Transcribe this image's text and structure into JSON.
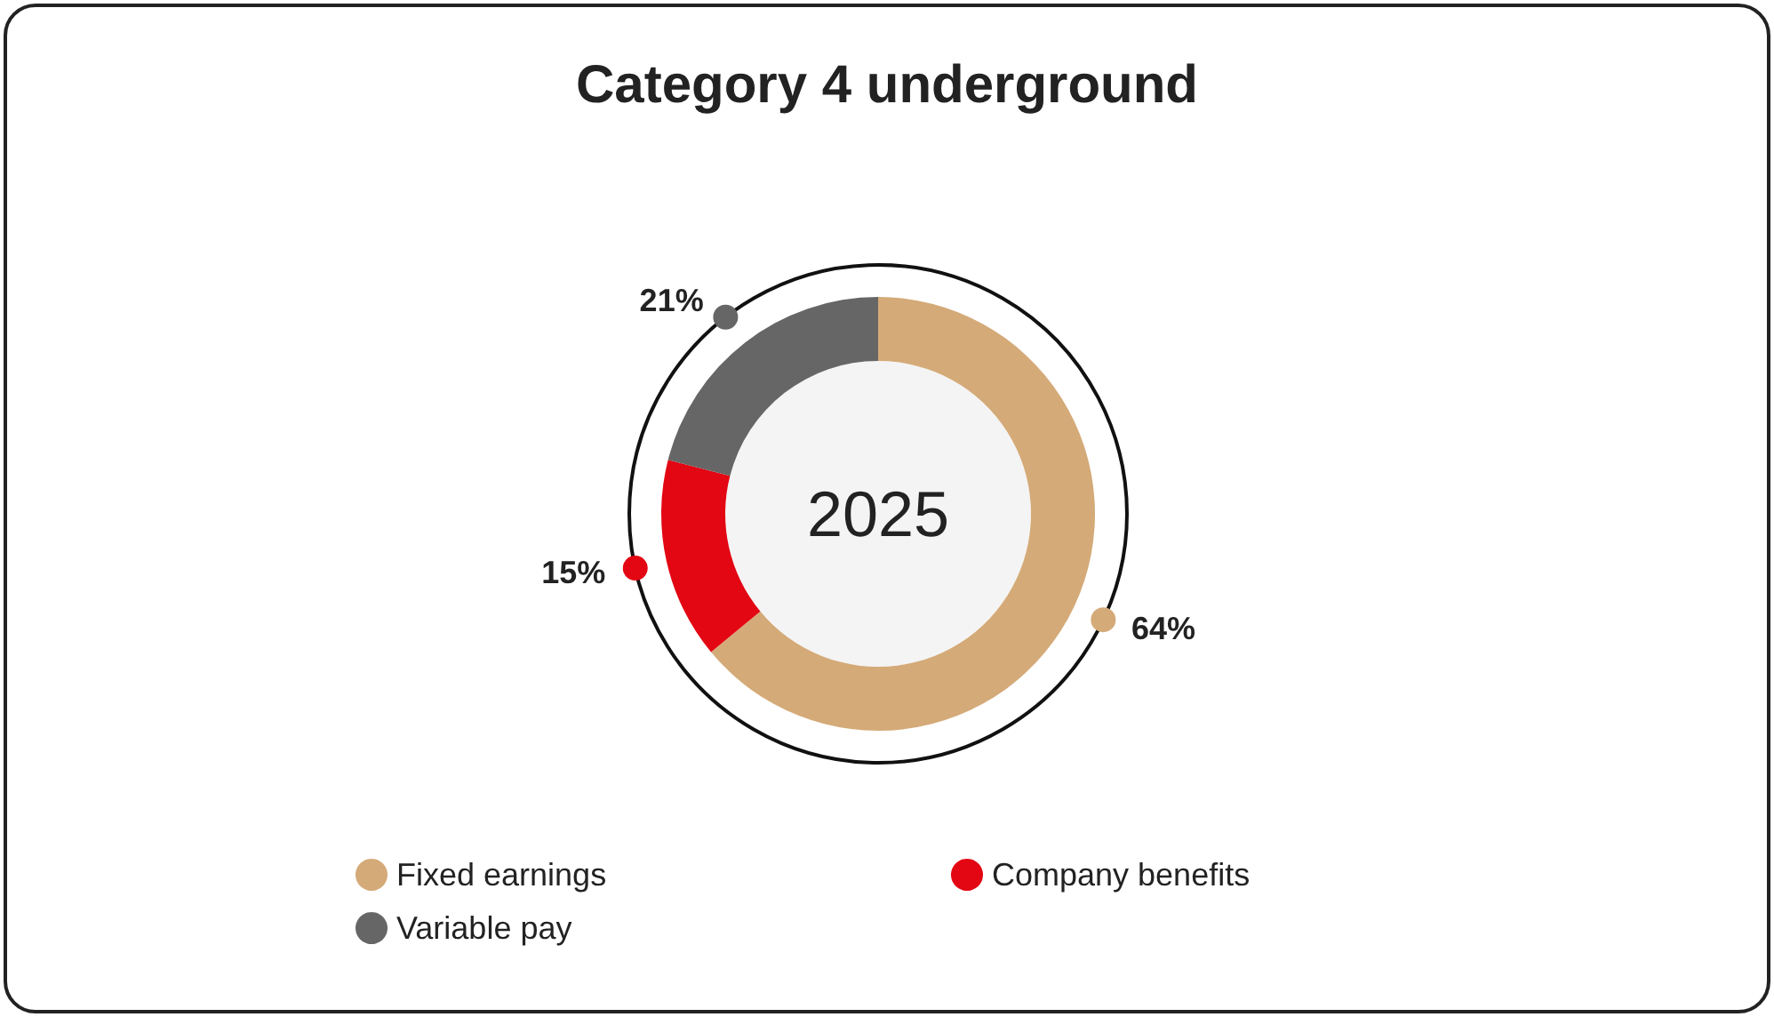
{
  "chart_data": {
    "type": "donut",
    "title": "Category 4 underground",
    "categories": [
      "Fixed earnings",
      "Company benefits",
      "Variable pay"
    ],
    "values": [
      64,
      15,
      21
    ],
    "colors": [
      "#d4aa78",
      "#e30613",
      "#666666"
    ],
    "value_labels": [
      "64%",
      "15%",
      "21%"
    ],
    "annotations": [
      "2025"
    ],
    "legend": "bottom"
  }
}
